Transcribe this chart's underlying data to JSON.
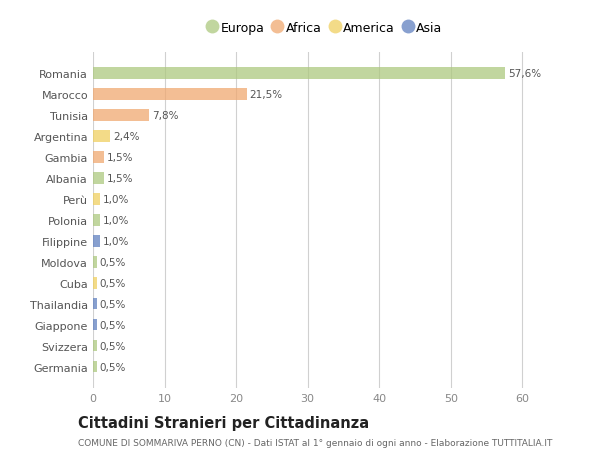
{
  "countries": [
    "Romania",
    "Marocco",
    "Tunisia",
    "Argentina",
    "Gambia",
    "Albania",
    "Perù",
    "Polonia",
    "Filippine",
    "Moldova",
    "Cuba",
    "Thailandia",
    "Giappone",
    "Svizzera",
    "Germania"
  ],
  "values": [
    57.6,
    21.5,
    7.8,
    2.4,
    1.5,
    1.5,
    1.0,
    1.0,
    1.0,
    0.5,
    0.5,
    0.5,
    0.5,
    0.5,
    0.5
  ],
  "labels": [
    "57,6%",
    "21,5%",
    "7,8%",
    "2,4%",
    "1,5%",
    "1,5%",
    "1,0%",
    "1,0%",
    "1,0%",
    "0,5%",
    "0,5%",
    "0,5%",
    "0,5%",
    "0,5%",
    "0,5%"
  ],
  "continents": [
    "Europa",
    "Africa",
    "Africa",
    "America",
    "Africa",
    "Europa",
    "America",
    "Europa",
    "Asia",
    "Europa",
    "America",
    "Asia",
    "Asia",
    "Europa",
    "Europa"
  ],
  "continent_colors": {
    "Europa": "#adc97f",
    "Africa": "#f0a870",
    "America": "#f0d060",
    "Asia": "#6080c0"
  },
  "legend_order": [
    "Europa",
    "Africa",
    "America",
    "Asia"
  ],
  "title": "Cittadini Stranieri per Cittadinanza",
  "subtitle": "COMUNE DI SOMMARIVA PERNO (CN) - Dati ISTAT al 1° gennaio di ogni anno - Elaborazione TUTTITALIA.IT",
  "xlabel_vals": [
    0,
    10,
    20,
    30,
    40,
    50,
    60
  ],
  "xlim": [
    0,
    65
  ],
  "bg_color": "#ffffff",
  "grid_color": "#d0d0d0",
  "bar_alpha": 0.75,
  "bar_height": 0.55
}
